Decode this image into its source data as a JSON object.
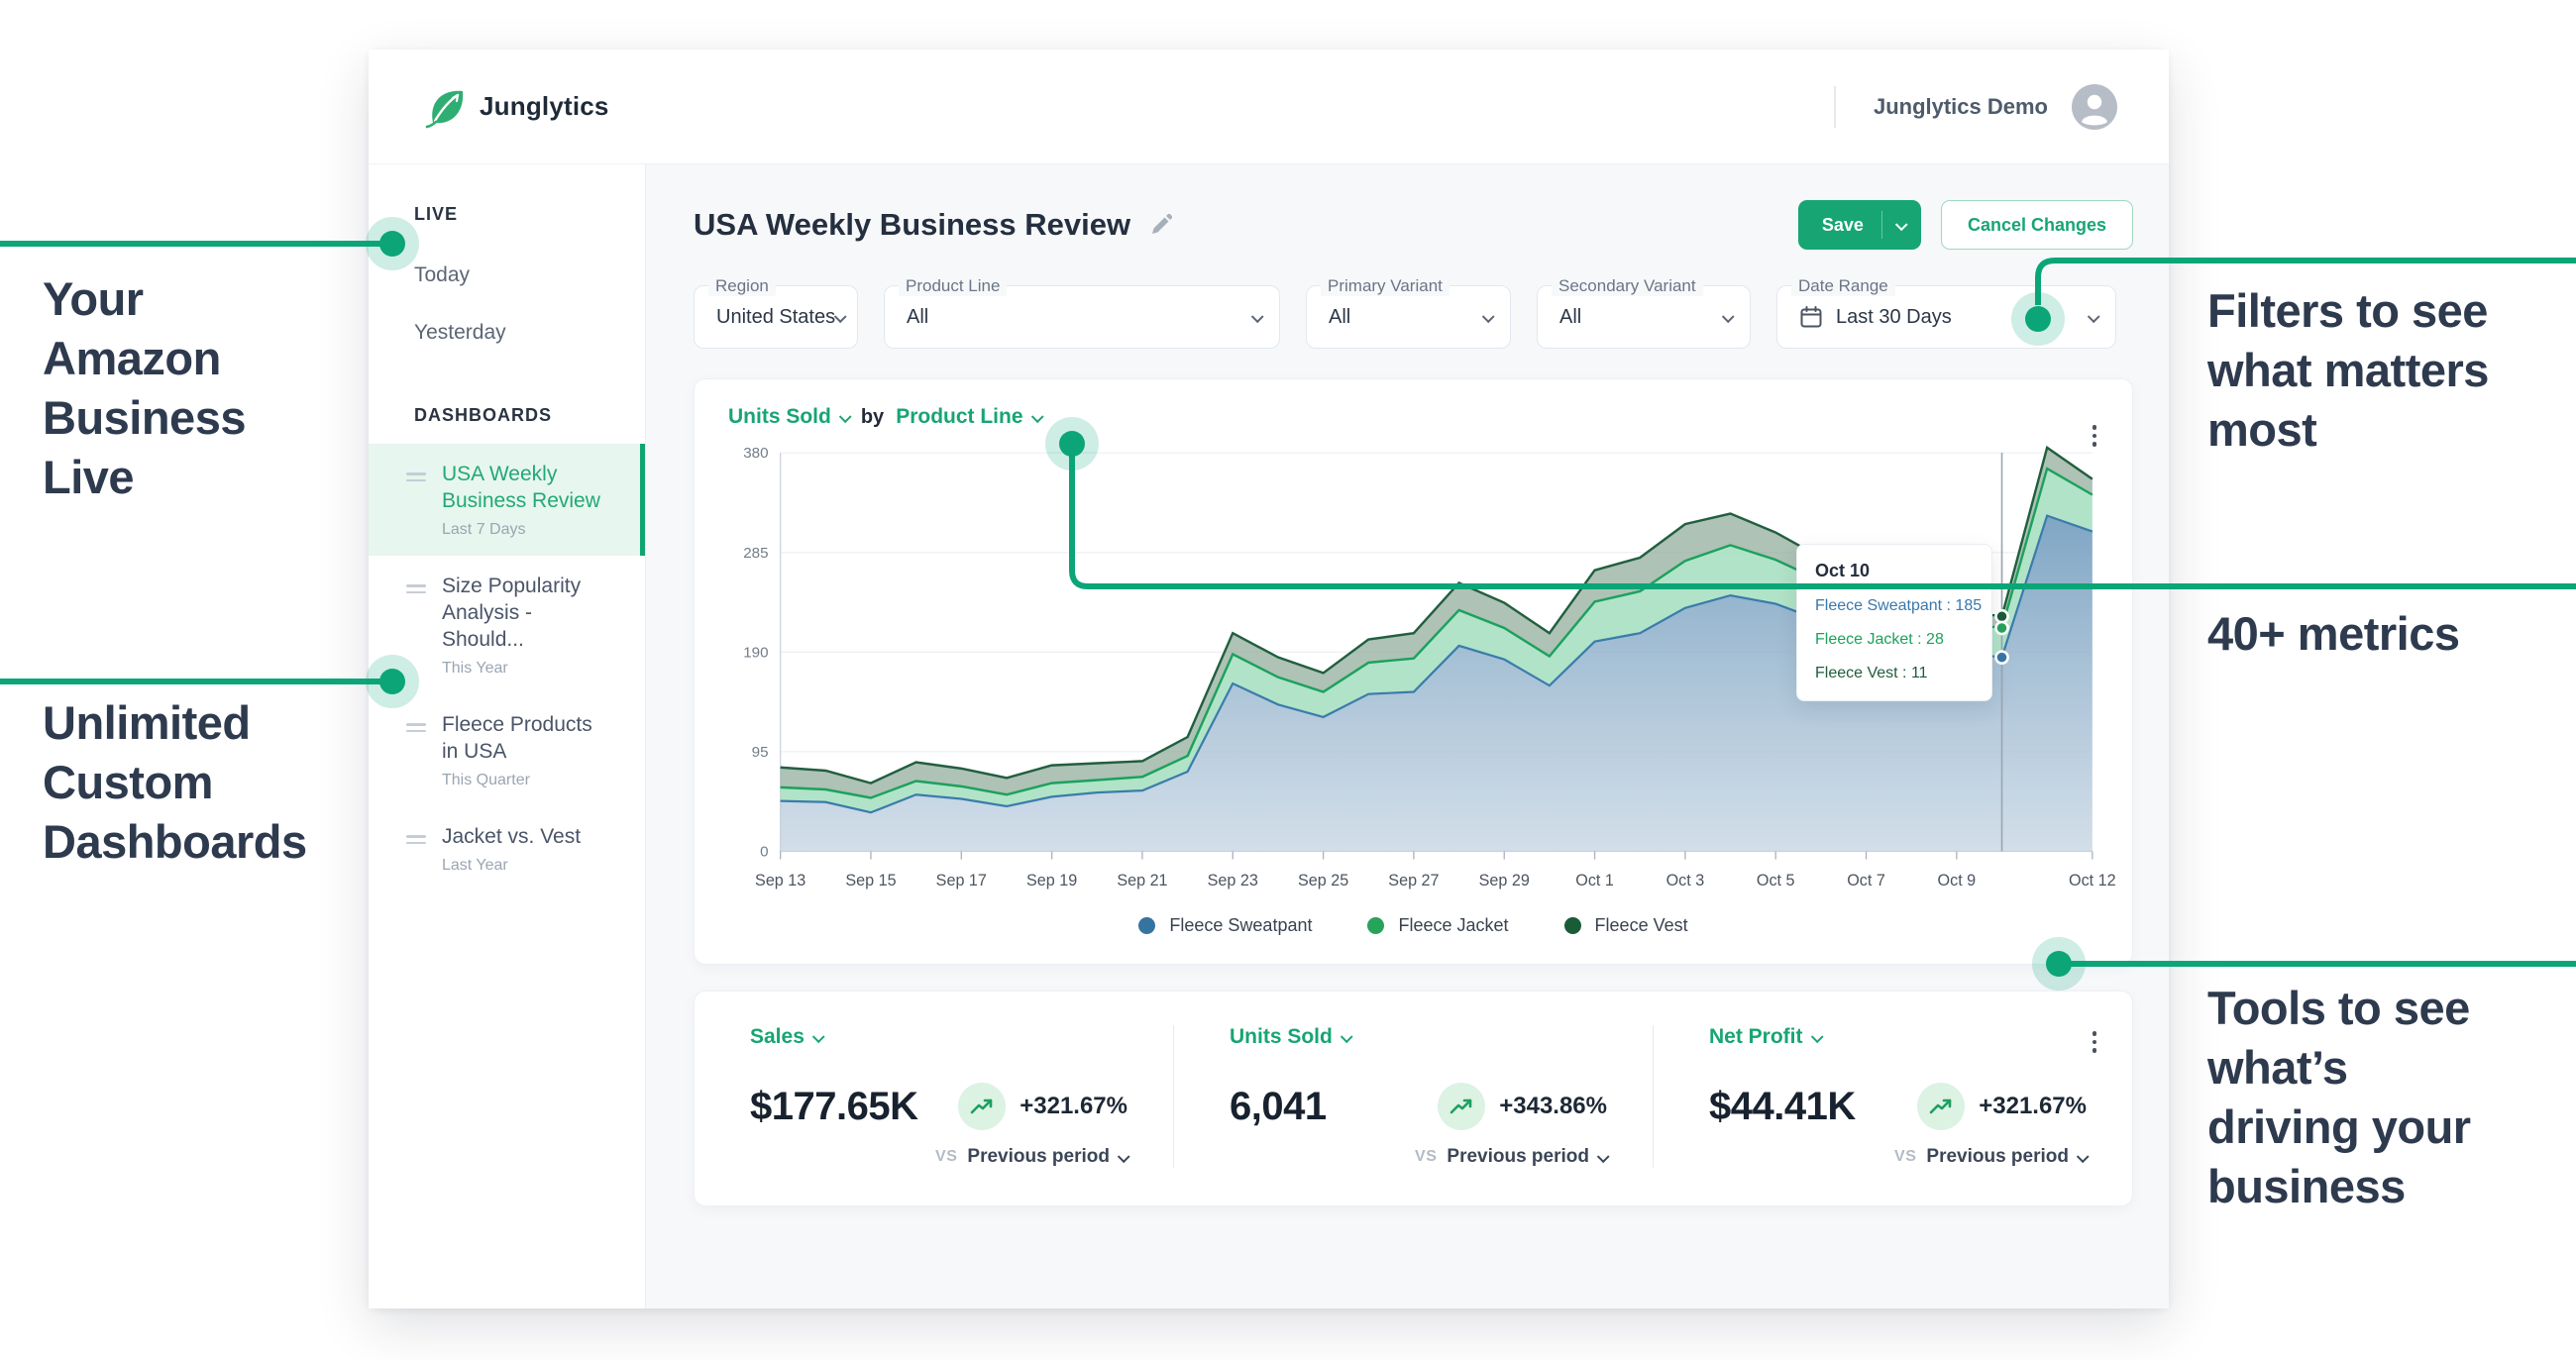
{
  "annotations": {
    "your_amazon": {
      "lines": [
        "Your",
        "Amazon",
        "Business",
        "Live"
      ]
    },
    "unlimited": {
      "lines": [
        "Unlimited",
        "Custom",
        "Dashboards"
      ]
    },
    "filters_note": {
      "lines": [
        "Filters to see",
        "what matters",
        "most"
      ]
    },
    "metrics_note": {
      "lines": [
        "40+ metrics"
      ]
    },
    "tools_note": {
      "lines": [
        "Tools to see",
        "what’s",
        "driving your",
        "business"
      ]
    },
    "accent_color": "#0ba577"
  },
  "header": {
    "brand": "Junglytics",
    "account": "Junglytics Demo"
  },
  "sidebar": {
    "live_label": "LIVE",
    "live_items": [
      {
        "label": "Today"
      },
      {
        "label": "Yesterday"
      }
    ],
    "dashboards_label": "DASHBOARDS",
    "dashboards": [
      {
        "title": "USA Weekly Business Review",
        "subtitle": "Last 7 Days",
        "active": true
      },
      {
        "title": "Size Popularity Analysis - Should...",
        "subtitle": "This Year",
        "active": false
      },
      {
        "title": "Fleece Products in USA",
        "subtitle": "This Quarter",
        "active": false
      },
      {
        "title": "Jacket vs. Vest",
        "subtitle": "Last Year",
        "active": false
      }
    ]
  },
  "page": {
    "title": "USA Weekly Business Review",
    "save_label": "Save",
    "cancel_label": "Cancel Changes"
  },
  "filters": {
    "region": {
      "label": "Region",
      "value": "United States"
    },
    "product_line": {
      "label": "Product Line",
      "value": "All"
    },
    "primary_variant": {
      "label": "Primary Variant",
      "value": "All"
    },
    "secondary_variant": {
      "label": "Secondary Variant",
      "value": "All"
    },
    "date_range": {
      "label": "Date Range",
      "value": "Last 30 Days"
    }
  },
  "chart_card": {
    "metric_label": "Units Sold",
    "by_label": "by",
    "dimension_label": "Product Line",
    "legend": [
      {
        "name": "Fleece Sweatpant",
        "color": "#35749f"
      },
      {
        "name": "Fleece Jacket",
        "color": "#27a35c"
      },
      {
        "name": "Fleece Vest",
        "color": "#1b5c38"
      }
    ]
  },
  "chart_data": {
    "type": "area",
    "stacked": true,
    "title": "Units Sold by Product Line",
    "xlabel": "",
    "ylabel": "",
    "ylim": [
      0,
      380
    ],
    "yticks": [
      0,
      95,
      190,
      285,
      380
    ],
    "x": [
      "Sep 13",
      "Sep 14",
      "Sep 15",
      "Sep 16",
      "Sep 17",
      "Sep 18",
      "Sep 19",
      "Sep 20",
      "Sep 21",
      "Sep 22",
      "Sep 23",
      "Sep 24",
      "Sep 25",
      "Sep 26",
      "Sep 27",
      "Sep 28",
      "Sep 29",
      "Sep 30",
      "Oct 1",
      "Oct 2",
      "Oct 3",
      "Oct 4",
      "Oct 5",
      "Oct 6",
      "Oct 7",
      "Oct 8",
      "Oct 9",
      "Oct 10",
      "Oct 11",
      "Oct 12"
    ],
    "x_tick_indices": [
      0,
      2,
      4,
      6,
      8,
      10,
      12,
      14,
      16,
      18,
      20,
      22,
      24,
      26,
      29
    ],
    "series": [
      {
        "name": "Fleece Sweatpant",
        "color": "#3a7cab",
        "values": [
          48,
          47,
          37,
          54,
          50,
          43,
          52,
          56,
          58,
          76,
          160,
          140,
          128,
          150,
          152,
          196,
          183,
          158,
          200,
          208,
          232,
          244,
          236,
          220,
          205,
          196,
          190,
          185,
          320,
          305
        ]
      },
      {
        "name": "Fleece Jacket",
        "color": "#1ca15d",
        "values": [
          13,
          12,
          14,
          13,
          12,
          11,
          13,
          12,
          13,
          15,
          28,
          26,
          24,
          30,
          32,
          34,
          30,
          28,
          38,
          40,
          45,
          48,
          42,
          38,
          34,
          30,
          28,
          28,
          45,
          35
        ]
      },
      {
        "name": "Fleece Vest",
        "color": "#215f3f",
        "values": [
          19,
          18,
          14,
          18,
          17,
          16,
          17,
          16,
          15,
          18,
          20,
          19,
          18,
          22,
          24,
          26,
          24,
          22,
          30,
          32,
          35,
          30,
          26,
          22,
          18,
          14,
          12,
          11,
          20,
          15
        ]
      }
    ],
    "crosshair_index": 27,
    "tooltip": {
      "title": "Oct 10",
      "rows": [
        {
          "label": "Fleece Sweatpant",
          "value": 185,
          "color": "#3a78ab"
        },
        {
          "label": "Fleece Jacket",
          "value": 28,
          "color": "#1ca15d"
        },
        {
          "label": "Fleece Vest",
          "value": 11,
          "color": "#1f5c3d"
        }
      ]
    },
    "legend_position": "bottom",
    "grid": true
  },
  "metrics": {
    "cards": [
      {
        "label": "Sales",
        "value": "$177.65K",
        "delta": "+321.67%",
        "vs": "VS",
        "period": "Previous period"
      },
      {
        "label": "Units Sold",
        "value": "6,041",
        "delta": "+343.86%",
        "vs": "VS",
        "period": "Previous period"
      },
      {
        "label": "Net Profit",
        "value": "$44.41K",
        "delta": "+321.67%",
        "vs": "VS",
        "period": "Previous period"
      }
    ]
  }
}
